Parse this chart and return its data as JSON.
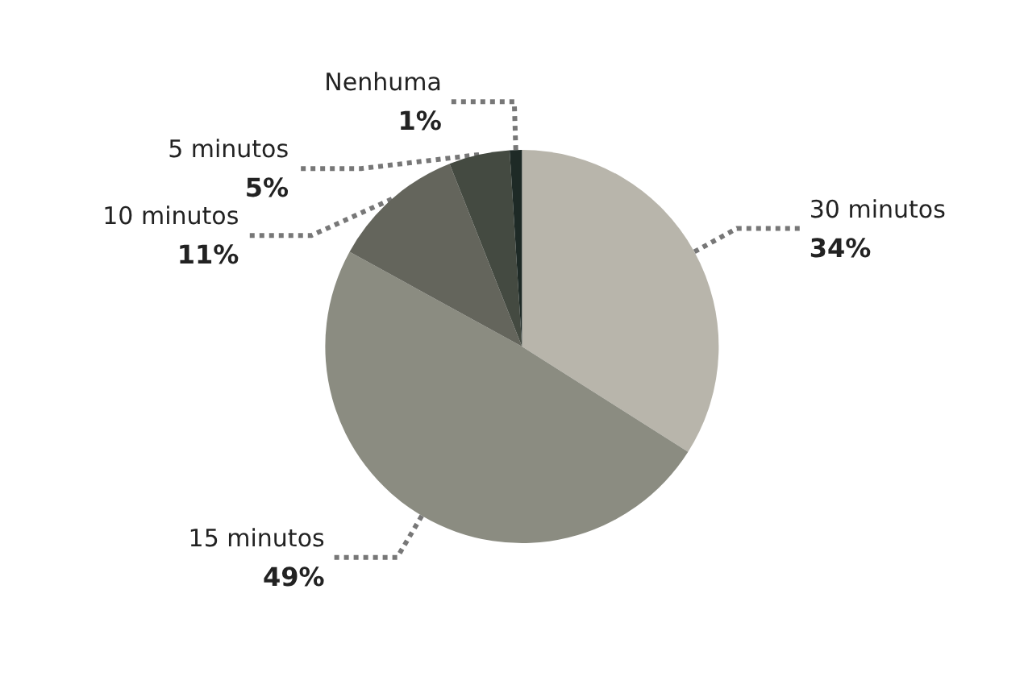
{
  "chart_data": {
    "type": "pie",
    "categories": [
      "30 minutos",
      "15 minutos",
      "10 minutos",
      "5 minutos",
      "Nenhuma"
    ],
    "values": [
      34,
      49,
      11,
      5,
      1
    ],
    "value_labels": [
      "34%",
      "49%",
      "11%",
      "5%",
      "1%"
    ],
    "colors": [
      "#b8b5ab",
      "#8b8c81",
      "#64655c",
      "#444a41",
      "#1e2a26"
    ],
    "legend": false
  }
}
